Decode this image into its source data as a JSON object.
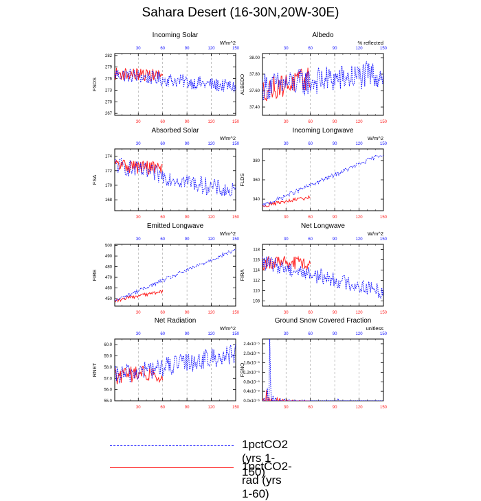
{
  "title": "Sahara Desert (16-30N,20W-30E)",
  "colors": {
    "exp1": "#1010ff",
    "exp2": "#ff2020",
    "axis": "#000000",
    "grid": "#999999"
  },
  "legend": {
    "items": [
      {
        "label": "1pctCO2 (yrs 1-150)",
        "color": "#1010ff",
        "style": "dashed"
      },
      {
        "label": "1pctCO2-rad (yrs 1-60)",
        "color": "#ff2020",
        "style": "solid"
      }
    ]
  },
  "chart_data": [
    {
      "type": "line",
      "title": "Incoming Solar",
      "ylabel": "FSDS",
      "units": "W/m^2",
      "xlim": [
        1,
        150
      ],
      "ylim": [
        266.5,
        282.5
      ],
      "yticks": [
        267,
        270,
        273,
        276,
        279,
        282
      ],
      "ytick_labels": [
        "267",
        "270",
        "273",
        "276",
        "279",
        "282"
      ],
      "top_ticks": [
        "30",
        "60",
        "90",
        "120",
        "150"
      ],
      "bottom_ticks": [
        "30",
        "60",
        "90",
        "120",
        "150"
      ],
      "series": [
        {
          "name": "1pctCO2 (yrs 1-150)",
          "length": 150,
          "start": 277.2,
          "end": 273.8,
          "amp": 1.8,
          "color": "#1010ff"
        },
        {
          "name": "1pctCO2-rad (yrs 1-60)",
          "length": 60,
          "start": 277.3,
          "end": 276.8,
          "amp": 1.6,
          "color": "#ff2020"
        }
      ]
    },
    {
      "type": "line",
      "title": "Albedo",
      "ylabel": "ALBEDO",
      "units": "% reflected",
      "xlim": [
        1,
        150
      ],
      "ylim": [
        37.3,
        38.05
      ],
      "yticks": [
        37.4,
        37.6,
        37.8,
        38.0
      ],
      "ytick_labels": [
        "37.40",
        "37.60",
        "37.80",
        "38.00"
      ],
      "top_ticks": [
        "30",
        "60",
        "90",
        "120",
        "150"
      ],
      "bottom_ticks": [
        "30",
        "60",
        "90",
        "120",
        "150"
      ],
      "series": [
        {
          "name": "1pctCO2 (yrs 1-150)",
          "length": 150,
          "start": 37.65,
          "end": 37.8,
          "amp": 0.17,
          "color": "#1010ff"
        },
        {
          "name": "1pctCO2-rad (yrs 1-60)",
          "length": 60,
          "start": 37.6,
          "end": 37.75,
          "amp": 0.14,
          "color": "#ff2020"
        }
      ]
    },
    {
      "type": "line",
      "title": "Absorbed Solar",
      "ylabel": "FSA",
      "units": "W/m^2",
      "xlim": [
        1,
        150
      ],
      "ylim": [
        166.5,
        175
      ],
      "yticks": [
        168,
        170,
        172,
        174
      ],
      "ytick_labels": [
        "168",
        "170",
        "172",
        "174"
      ],
      "top_ticks": [
        "30",
        "60",
        "90",
        "120",
        "150"
      ],
      "bottom_ticks": [
        "30",
        "60",
        "90",
        "120",
        "150"
      ],
      "series": [
        {
          "name": "1pctCO2 (yrs 1-150)",
          "length": 150,
          "start": 172.8,
          "end": 169.0,
          "amp": 1.2,
          "color": "#1010ff"
        },
        {
          "name": "1pctCO2-rad (yrs 1-60)",
          "length": 60,
          "start": 172.8,
          "end": 172.3,
          "amp": 1.0,
          "color": "#ff2020"
        }
      ]
    },
    {
      "type": "line",
      "title": "Incoming Longwave",
      "ylabel": "FLDS",
      "units": "W/m^2",
      "xlim": [
        1,
        150
      ],
      "ylim": [
        328,
        392
      ],
      "yticks": [
        340,
        360,
        380
      ],
      "ytick_labels": [
        "340",
        "360",
        "380"
      ],
      "top_ticks": [
        "30",
        "60",
        "90",
        "120",
        "150"
      ],
      "bottom_ticks": [
        "30",
        "60",
        "90",
        "120",
        "150"
      ],
      "series": [
        {
          "name": "1pctCO2 (yrs 1-150)",
          "length": 150,
          "start": 333,
          "end": 387,
          "amp": 2.2,
          "color": "#1010ff"
        },
        {
          "name": "1pctCO2-rad (yrs 1-60)",
          "length": 60,
          "start": 333,
          "end": 342,
          "amp": 2.0,
          "color": "#ff2020"
        }
      ]
    },
    {
      "type": "line",
      "title": "Emitted Longwave",
      "ylabel": "FIRE",
      "units": "W/m^2",
      "xlim": [
        1,
        150
      ],
      "ylim": [
        443,
        501
      ],
      "yticks": [
        450,
        460,
        470,
        480,
        490,
        500
      ],
      "ytick_labels": [
        "450",
        "460",
        "470",
        "480",
        "490",
        "500"
      ],
      "top_ticks": [
        "30",
        "60",
        "90",
        "120",
        "150"
      ],
      "bottom_ticks": [
        "30",
        "60",
        "90",
        "120",
        "150"
      ],
      "series": [
        {
          "name": "1pctCO2 (yrs 1-150)",
          "length": 150,
          "start": 448,
          "end": 496,
          "amp": 1.8,
          "color": "#1010ff"
        },
        {
          "name": "1pctCO2-rad (yrs 1-60)",
          "length": 60,
          "start": 448,
          "end": 457,
          "amp": 1.6,
          "color": "#ff2020"
        }
      ]
    },
    {
      "type": "line",
      "title": "Net Longwave",
      "ylabel": "FIRA",
      "units": "W/m^2",
      "xlim": [
        1,
        150
      ],
      "ylim": [
        107,
        119
      ],
      "yticks": [
        108,
        110,
        112,
        114,
        116,
        118
      ],
      "ytick_labels": [
        "108",
        "110",
        "112",
        "114",
        "116",
        "118"
      ],
      "top_ticks": [
        "30",
        "60",
        "90",
        "120",
        "150"
      ],
      "bottom_ticks": [
        "30",
        "60",
        "90",
        "120",
        "150"
      ],
      "series": [
        {
          "name": "1pctCO2 (yrs 1-150)",
          "length": 150,
          "start": 115.5,
          "end": 109.8,
          "amp": 1.5,
          "color": "#1010ff"
        },
        {
          "name": "1pctCO2-rad (yrs 1-60)",
          "length": 60,
          "start": 115.4,
          "end": 115.2,
          "amp": 1.4,
          "color": "#ff2020"
        }
      ]
    },
    {
      "type": "line",
      "title": "Net Radiation",
      "ylabel": "RNET",
      "units": "W/m^2",
      "xlim": [
        1,
        150
      ],
      "ylim": [
        55.0,
        60.5
      ],
      "yticks": [
        55.0,
        56.0,
        57.0,
        58.0,
        59.0,
        60.0
      ],
      "ytick_labels": [
        "55.0",
        "56.0",
        "57.0",
        "58.0",
        "59.0",
        "60.0"
      ],
      "top_ticks": [
        "30",
        "60",
        "90",
        "120",
        "150"
      ],
      "bottom_ticks": [
        "30",
        "60",
        "90",
        "120",
        "150"
      ],
      "series": [
        {
          "name": "1pctCO2 (yrs 1-150)",
          "length": 150,
          "start": 57.2,
          "end": 59.2,
          "amp": 0.9,
          "color": "#1010ff"
        },
        {
          "name": "1pctCO2-rad (yrs 1-60)",
          "length": 60,
          "start": 57.2,
          "end": 57.5,
          "amp": 0.8,
          "color": "#ff2020"
        }
      ]
    },
    {
      "type": "line",
      "title": "Ground Snow Covered Fraction",
      "ylabel": "FSNO",
      "units": "unitless",
      "xlim": [
        1,
        150
      ],
      "ylim": [
        0,
        2.6e-05
      ],
      "yticks": [
        0,
        4e-06,
        8e-06,
        1.2e-05,
        1.6e-05,
        2e-05,
        2.4e-05
      ],
      "ytick_labels": [
        "0.0x10⁻⁶",
        "0.4x10⁻⁵",
        "0.8x10⁻⁵",
        "1.2x10⁻⁵",
        "1.6x10⁻⁵",
        "2.0x10⁻⁵",
        "2.4x10⁻⁵"
      ],
      "top_ticks": [
        "30",
        "60",
        "90",
        "120",
        "150"
      ],
      "bottom_ticks": [
        "30",
        "60",
        "90",
        "120",
        "150"
      ],
      "series": [
        {
          "name": "1pctCO2 (yrs 1-150)",
          "length": 150,
          "color": "#1010ff",
          "spikes": [
            [
              3,
              1.2e-06
            ],
            [
              7,
              5.5e-06
            ],
            [
              10,
              2.6e-05
            ],
            [
              11,
              7e-06
            ],
            [
              14,
              2.2e-06
            ],
            [
              17,
              1.4e-06
            ],
            [
              23,
              8e-07
            ],
            [
              28,
              9e-07
            ],
            [
              34,
              5e-07
            ],
            [
              41,
              4e-07
            ],
            [
              53,
              3e-07
            ],
            [
              94,
              1e-06
            ]
          ]
        },
        {
          "name": "1pctCO2-rad (yrs 1-60)",
          "length": 60,
          "color": "#ff2020",
          "spikes": [
            [
              2,
              8e-07
            ],
            [
              6,
              4.5e-06
            ],
            [
              9,
              1.5e-06
            ],
            [
              12,
              1e-06
            ],
            [
              19,
              1.2e-06
            ],
            [
              22,
              8e-07
            ],
            [
              26,
              6e-07
            ],
            [
              31,
              4e-07
            ],
            [
              38,
              3e-07
            ],
            [
              47,
              2e-07
            ]
          ]
        }
      ]
    }
  ]
}
